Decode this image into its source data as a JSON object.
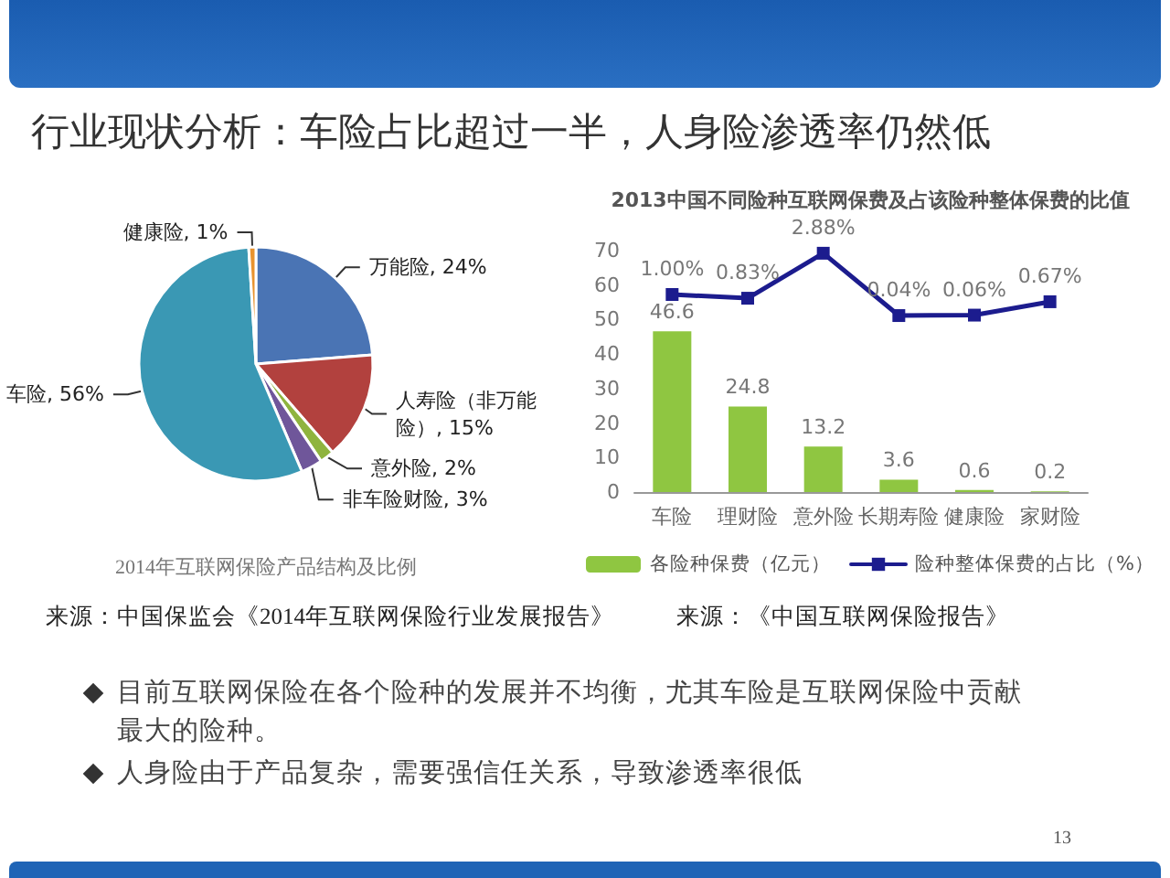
{
  "chart_data": [
    {
      "type": "pie",
      "title": "2014年互联网保险产品结构及比例",
      "categories": [
        "万能险",
        "人寿险（非万能险）",
        "意外险",
        "非车险财险",
        "车险",
        "健康险"
      ],
      "values": [
        24,
        15,
        2,
        3,
        56,
        1
      ],
      "colors": [
        "#4a74b4",
        "#b2413e",
        "#8fb43e",
        "#6f569a",
        "#3a98b4",
        "#e8932f"
      ],
      "value_labels": [
        "24%",
        "15%",
        "2%",
        "3%",
        "56%",
        "1%"
      ],
      "annotations": [
        "来源：中国保监会《2014年互联网保险行业发展报告》"
      ]
    },
    {
      "type": "bar",
      "title": "2013中国不同险种互联网保费及占该险种整体保费的比值",
      "categories": [
        "车险",
        "理财险",
        "意外险",
        "长期寿险",
        "健康险",
        "家财险"
      ],
      "series": [
        {
          "name": "各险种保费（亿元）",
          "color": "#8fc641",
          "values": [
            46.6,
            24.8,
            13.2,
            3.6,
            0.6,
            0.2
          ],
          "value_labels": [
            "46.6",
            "24.8",
            "13.2",
            "3.6",
            "0.6",
            "0.2"
          ]
        },
        {
          "name": "险种整体保费的占比（%）",
          "type": "line",
          "axis": "y2",
          "color": "#1c1c8e",
          "values": [
            1.0,
            0.83,
            2.88,
            0.04,
            0.06,
            0.67
          ],
          "value_labels": [
            "1.00%",
            "0.83%",
            "2.88%",
            "0.04%",
            "0.06%",
            "0.67%"
          ]
        }
      ],
      "ylim": [
        0,
        70
      ],
      "yticks": [
        0,
        10,
        20,
        30,
        40,
        50,
        60,
        70
      ],
      "y2lim": [
        -8,
        3
      ],
      "marker": "square",
      "grid": false,
      "legend": "bottom",
      "annotations": [
        "来源：《中国互联网保险报告》"
      ]
    },
    {
      "type": "other",
      "title": "行业现状分析：车险占比超过一半，人身险渗透率仍然低",
      "annotations": [
        "目前互联网保险在各个险种的发展并不均衡，尤其车险是互联网保险中贡献最大的险种。",
        "人身险由于产品复杂，需要强信任关系，导致渗透率很低",
        "13"
      ]
    }
  ]
}
